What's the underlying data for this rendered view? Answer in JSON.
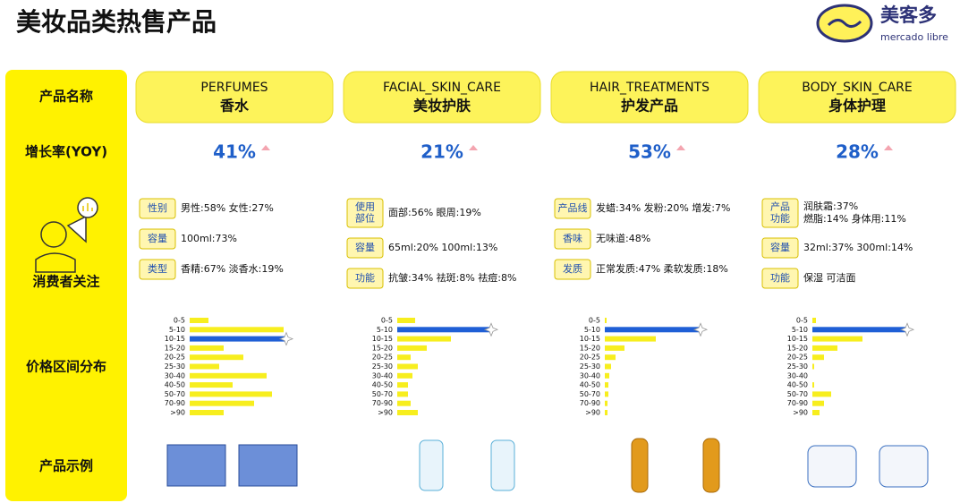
{
  "header": {
    "title": "美妆品类热售产品"
  },
  "logo": {
    "zh": "美客多",
    "en": "mercado libre"
  },
  "row_labels": [
    "产品名称",
    "增长率(YOY)",
    "消费者关注",
    "价格区间分布",
    "产品示例"
  ],
  "price_bins": [
    "0-5",
    "5-10",
    "10-15",
    "15-20",
    "20-25",
    "25-30",
    "30-40",
    "40-50",
    "50-70",
    "70-90",
    ">90"
  ],
  "bar_color": "#f7ee1e",
  "highlight_color": "#1f5fd6",
  "columns": [
    {
      "name_en": "PERFUMES",
      "name_zh": "香水",
      "growth": "41%",
      "attributes": [
        {
          "tag": [
            "性别"
          ],
          "text": [
            "男性:58% 女性:27%"
          ]
        },
        {
          "tag": [
            "容量"
          ],
          "text": [
            "100ml:73%"
          ]
        },
        {
          "tag": [
            "类型"
          ],
          "text": [
            "香精:67% 淡香水:19%"
          ]
        }
      ],
      "price": {
        "values": [
          21,
          105,
          108,
          38,
          60,
          33,
          86,
          48,
          92,
          72,
          38
        ],
        "highlight": 2
      }
    },
    {
      "name_en": "FACIAL_SKIN_CARE",
      "name_zh": "美妆护肤",
      "growth": "21%",
      "attributes": [
        {
          "tag": [
            "使用",
            "部位"
          ],
          "text": [
            "面部:56% 眼周:19%"
          ]
        },
        {
          "tag": [
            "容量"
          ],
          "text": [
            "65ml:20% 100ml:13%"
          ]
        },
        {
          "tag": [
            "功能"
          ],
          "text": [
            "抗皱:34% 祛斑:8% 祛痘:8%"
          ]
        }
      ],
      "price": {
        "values": [
          20,
          105,
          60,
          33,
          15,
          23,
          17,
          12,
          12,
          15,
          23
        ],
        "highlight": 1
      }
    },
    {
      "name_en": "HAIR_TREATMENTS",
      "name_zh": "护发产品",
      "growth": "53%",
      "attributes": [
        {
          "tag": [
            "产品线"
          ],
          "text": [
            "发蜡:34% 发粉:20% 增发:7%"
          ]
        },
        {
          "tag": [
            "香味"
          ],
          "text": [
            "无味道:48%"
          ]
        },
        {
          "tag": [
            "发质"
          ],
          "text": [
            "正常发质:47% 柔软发质:18%"
          ]
        }
      ],
      "price": {
        "values": [
          2,
          107,
          57,
          22,
          12,
          7,
          5,
          4,
          4,
          3,
          3
        ],
        "highlight": 1
      }
    },
    {
      "name_en": "BODY_SKIN_CARE",
      "name_zh": "身体护理",
      "growth": "28%",
      "attributes": [
        {
          "tag": [
            "产品",
            "功能"
          ],
          "text": [
            "润肤霜:37%",
            "燃脂:14% 身体用:11%"
          ]
        },
        {
          "tag": [
            "容量"
          ],
          "text": [
            "32ml:37% 300ml:14%"
          ]
        },
        {
          "tag": [
            "功能"
          ],
          "text": [
            "保湿 可洁面"
          ]
        }
      ],
      "price": {
        "values": [
          4,
          106,
          56,
          28,
          13,
          2,
          0,
          2,
          21,
          13,
          8
        ],
        "highlight": 1
      }
    }
  ]
}
